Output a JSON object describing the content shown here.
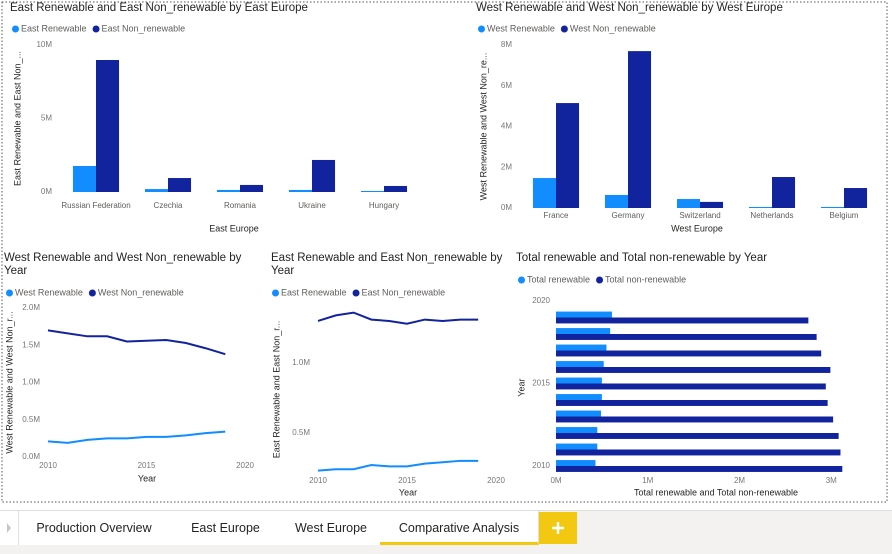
{
  "chart_data": [
    {
      "type": "bar",
      "title": "East Renewable and East Non_renewable by East Europe",
      "categories": [
        "Russian Federation",
        "Czechia",
        "Romania",
        "Ukraine",
        "Hungary"
      ],
      "series": [
        {
          "name": "East Renewable",
          "color": "#118dff",
          "values": [
            1770000,
            200000,
            140000,
            140000,
            70000
          ]
        },
        {
          "name": "East  Non_renewable",
          "color": "#12239e",
          "values": [
            8980000,
            950000,
            480000,
            2180000,
            410000
          ]
        }
      ],
      "ylim": [
        0,
        10000000
      ],
      "yticks": [
        {
          "value": 0,
          "label": "0M"
        },
        {
          "value": 5000000,
          "label": "5M"
        },
        {
          "value": 10000000,
          "label": "10M"
        }
      ],
      "x_label": "East Europe",
      "y_label": "East Renewable and East Non_...",
      "legend": "top-left"
    },
    {
      "type": "bar",
      "title": "West Renewable and West Non_renewable by West Europe",
      "categories": [
        "France",
        "Germany",
        "Switzerland",
        "Netherlands",
        "Belgium"
      ],
      "series": [
        {
          "name": "West Renewable",
          "color": "#118dff",
          "values": [
            1470000,
            640000,
            440000,
            50000,
            50000
          ]
        },
        {
          "name": "West Non_renewable",
          "color": "#12239e",
          "values": [
            5150000,
            7700000,
            300000,
            1520000,
            980000
          ]
        }
      ],
      "ylim": [
        0,
        8000000
      ],
      "yticks": [
        {
          "value": 0,
          "label": "0M"
        },
        {
          "value": 2000000,
          "label": "2M"
        },
        {
          "value": 4000000,
          "label": "4M"
        },
        {
          "value": 6000000,
          "label": "6M"
        },
        {
          "value": 8000000,
          "label": "8M"
        }
      ],
      "x_label": "West Europe",
      "y_label": "West Renewable and West Non_re...",
      "legend": "top-left"
    },
    {
      "type": "line",
      "title": "West Renewable and West Non_renewable by Year",
      "x": [
        2010,
        2011,
        2012,
        2013,
        2014,
        2015,
        2016,
        2017,
        2018,
        2019
      ],
      "series": [
        {
          "name": "West Renewable",
          "color": "#118dff",
          "values": [
            210000,
            190000,
            230000,
            250000,
            250000,
            270000,
            270000,
            290000,
            320000,
            340000
          ]
        },
        {
          "name": "West Non_renewable",
          "color": "#12239e",
          "values": [
            1700000,
            1660000,
            1620000,
            1620000,
            1550000,
            1560000,
            1570000,
            1530000,
            1460000,
            1380000
          ]
        }
      ],
      "xlim": [
        2010,
        2020
      ],
      "xticks": [
        2010,
        2015,
        2020
      ],
      "ylim": [
        0,
        2000000
      ],
      "yticks": [
        {
          "value": 0,
          "label": "0.0M"
        },
        {
          "value": 500000,
          "label": "0.5M"
        },
        {
          "value": 1000000,
          "label": "1.0M"
        },
        {
          "value": 1500000,
          "label": "1.5M"
        },
        {
          "value": 2000000,
          "label": "2.0M"
        }
      ],
      "x_label": "Year",
      "y_label": "West Renewable and West Non_r...",
      "legend": "top-left"
    },
    {
      "type": "line",
      "title": "East Renewable and East Non_renewable by Year",
      "x": [
        2010,
        2011,
        2012,
        2013,
        2014,
        2015,
        2016,
        2017,
        2018,
        2019
      ],
      "series": [
        {
          "name": "East Renewable",
          "color": "#118dff",
          "values": [
            230000,
            240000,
            240000,
            270000,
            260000,
            260000,
            280000,
            290000,
            300000,
            300000
          ]
        },
        {
          "name": "East  Non_renewable",
          "color": "#12239e",
          "values": [
            1300000,
            1340000,
            1360000,
            1310000,
            1300000,
            1280000,
            1310000,
            1300000,
            1310000,
            1310000
          ]
        }
      ],
      "xlim": [
        2010,
        2020
      ],
      "xticks": [
        2010,
        2015,
        2020
      ],
      "ylim": [
        220000,
        1400000
      ],
      "yticks": [
        {
          "value": 500000,
          "label": "0.5M"
        },
        {
          "value": 1000000,
          "label": "1.0M"
        }
      ],
      "x_label": "Year",
      "y_label": "East Renewable and East Non_r...",
      "legend": "top-left"
    },
    {
      "type": "barh",
      "title": "Total renewable and Total non-renewable by Year",
      "categories": [
        2010,
        2011,
        2012,
        2013,
        2014,
        2015,
        2016,
        2017,
        2018,
        2019
      ],
      "series": [
        {
          "name": "Total renewable",
          "color": "#118dff",
          "values": [
            430000,
            450000,
            450000,
            490000,
            500000,
            500000,
            520000,
            550000,
            590000,
            610000
          ]
        },
        {
          "name": "Total non-renewable",
          "color": "#12239e",
          "values": [
            3120000,
            3100000,
            3080000,
            3020000,
            2960000,
            2940000,
            2990000,
            2890000,
            2840000,
            2750000
          ]
        }
      ],
      "ylim": [
        2009.5,
        2020
      ],
      "yticks": [
        2010,
        2015,
        2020
      ],
      "xlim": [
        0,
        3400000
      ],
      "xticks": [
        {
          "value": 0,
          "label": "0M"
        },
        {
          "value": 1000000,
          "label": "1M"
        },
        {
          "value": 2000000,
          "label": "2M"
        },
        {
          "value": 3000000,
          "label": "3M"
        }
      ],
      "x_label": "Total renewable and Total non-renewable",
      "y_label": "Year",
      "legend": "top-left"
    }
  ],
  "tabs": [
    "Production Overview",
    "East Europe",
    "West Europe",
    "Comparative Analysis"
  ],
  "active_tab": 3
}
